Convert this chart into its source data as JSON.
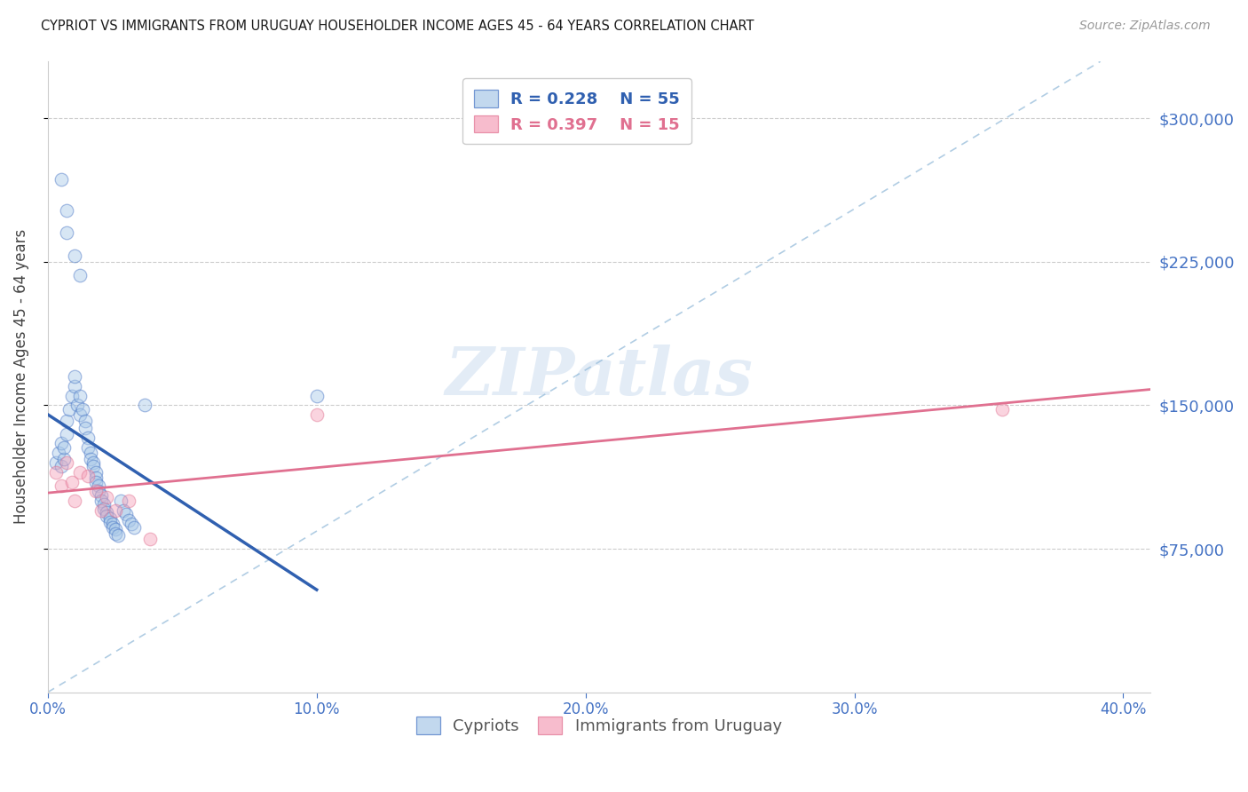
{
  "title": "CYPRIOT VS IMMIGRANTS FROM URUGUAY HOUSEHOLDER INCOME AGES 45 - 64 YEARS CORRELATION CHART",
  "source": "Source: ZipAtlas.com",
  "ylabel": "Householder Income Ages 45 - 64 years",
  "xlabel_tick_vals": [
    0.0,
    0.1,
    0.2,
    0.3,
    0.4
  ],
  "xlabel_ticks": [
    "0.0%",
    "10.0%",
    "20.0%",
    "30.0%",
    "40.0%"
  ],
  "ylabel_tick_vals": [
    75000,
    150000,
    225000,
    300000
  ],
  "ylabel_ticks": [
    "$75,000",
    "$150,000",
    "$225,000",
    "$300,000"
  ],
  "xlim": [
    0.0,
    0.41
  ],
  "ylim": [
    0,
    330000
  ],
  "blue_fill": "#a8c8e8",
  "blue_edge": "#4472c4",
  "blue_line": "#3060b0",
  "pink_fill": "#f4a0b8",
  "pink_edge": "#e07090",
  "pink_line": "#e07090",
  "axis_tick_color": "#4472c4",
  "right_label_color": "#4472c4",
  "background": "#ffffff",
  "grid_color": "#cccccc",
  "diag_color": "#90b8d8",
  "cypriot_x": [
    0.005,
    0.007,
    0.007,
    0.01,
    0.012,
    0.003,
    0.004,
    0.005,
    0.005,
    0.006,
    0.006,
    0.007,
    0.007,
    0.008,
    0.009,
    0.01,
    0.01,
    0.011,
    0.012,
    0.012,
    0.013,
    0.014,
    0.014,
    0.015,
    0.015,
    0.016,
    0.016,
    0.017,
    0.017,
    0.018,
    0.018,
    0.018,
    0.019,
    0.019,
    0.02,
    0.02,
    0.021,
    0.021,
    0.022,
    0.022,
    0.023,
    0.023,
    0.024,
    0.024,
    0.025,
    0.025,
    0.026,
    0.027,
    0.028,
    0.029,
    0.03,
    0.031,
    0.032,
    0.036,
    0.1
  ],
  "cypriot_y": [
    268000,
    252000,
    240000,
    228000,
    218000,
    120000,
    125000,
    130000,
    118000,
    122000,
    128000,
    135000,
    142000,
    148000,
    155000,
    160000,
    165000,
    150000,
    145000,
    155000,
    148000,
    142000,
    138000,
    133000,
    128000,
    125000,
    122000,
    120000,
    118000,
    115000,
    112000,
    110000,
    108000,
    105000,
    103000,
    100000,
    98000,
    96000,
    94000,
    92000,
    91000,
    89000,
    88000,
    86000,
    85000,
    83000,
    82000,
    100000,
    95000,
    93000,
    90000,
    88000,
    86000,
    150000,
    155000
  ],
  "uruguay_x": [
    0.003,
    0.005,
    0.007,
    0.009,
    0.01,
    0.012,
    0.015,
    0.018,
    0.02,
    0.022,
    0.025,
    0.03,
    0.038,
    0.1,
    0.355
  ],
  "uruguay_y": [
    115000,
    108000,
    120000,
    110000,
    100000,
    115000,
    113000,
    105000,
    95000,
    102000,
    95000,
    100000,
    80000,
    145000,
    148000
  ],
  "cypriot_R": 0.228,
  "cypriot_N": 55,
  "uruguay_R": 0.397,
  "uruguay_N": 15,
  "marker_size": 110,
  "alpha": 0.45,
  "watermark": "ZIPatlas"
}
